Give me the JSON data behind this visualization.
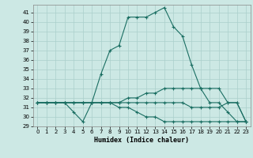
{
  "title": "",
  "xlabel": "Humidex (Indice chaleur)",
  "background_color": "#cce8e4",
  "grid_color": "#aacfcb",
  "line_color": "#1a6e62",
  "xlim": [
    -0.5,
    23.5
  ],
  "ylim": [
    29,
    41.8
  ],
  "yticks": [
    29,
    30,
    31,
    32,
    33,
    34,
    35,
    36,
    37,
    38,
    39,
    40,
    41
  ],
  "xticks": [
    0,
    1,
    2,
    3,
    4,
    5,
    6,
    7,
    8,
    9,
    10,
    11,
    12,
    13,
    14,
    15,
    16,
    17,
    18,
    19,
    20,
    21,
    22,
    23
  ],
  "series": [
    {
      "x": [
        0,
        1,
        2,
        3,
        4,
        5,
        6,
        7,
        8,
        9,
        10,
        11,
        12,
        13,
        14,
        15,
        16,
        17,
        18,
        19,
        20,
        21,
        22,
        23
      ],
      "y": [
        31.5,
        31.5,
        31.5,
        31.5,
        30.5,
        29.5,
        31.5,
        34.5,
        37.0,
        37.5,
        40.5,
        40.5,
        40.5,
        41.0,
        41.5,
        39.5,
        38.5,
        35.5,
        33.0,
        31.5,
        31.5,
        30.5,
        29.5,
        29.5
      ]
    },
    {
      "x": [
        0,
        1,
        2,
        3,
        4,
        5,
        6,
        7,
        8,
        9,
        10,
        11,
        12,
        13,
        14,
        15,
        16,
        17,
        18,
        19,
        20,
        21,
        22,
        23
      ],
      "y": [
        31.5,
        31.5,
        31.5,
        31.5,
        31.5,
        31.5,
        31.5,
        31.5,
        31.5,
        31.5,
        32.0,
        32.0,
        32.5,
        32.5,
        33.0,
        33.0,
        33.0,
        33.0,
        33.0,
        33.0,
        33.0,
        31.5,
        31.5,
        29.5
      ]
    },
    {
      "x": [
        0,
        1,
        2,
        3,
        4,
        5,
        6,
        7,
        8,
        9,
        10,
        11,
        12,
        13,
        14,
        15,
        16,
        17,
        18,
        19,
        20,
        21,
        22,
        23
      ],
      "y": [
        31.5,
        31.5,
        31.5,
        31.5,
        31.5,
        31.5,
        31.5,
        31.5,
        31.5,
        31.5,
        31.5,
        31.5,
        31.5,
        31.5,
        31.5,
        31.5,
        31.5,
        31.0,
        31.0,
        31.0,
        31.0,
        31.5,
        31.5,
        29.5
      ]
    },
    {
      "x": [
        0,
        1,
        2,
        3,
        4,
        5,
        6,
        7,
        8,
        9,
        10,
        11,
        12,
        13,
        14,
        15,
        16,
        17,
        18,
        19,
        20,
        21,
        22,
        23
      ],
      "y": [
        31.5,
        31.5,
        31.5,
        31.5,
        31.5,
        31.5,
        31.5,
        31.5,
        31.5,
        31.0,
        31.0,
        30.5,
        30.0,
        30.0,
        29.5,
        29.5,
        29.5,
        29.5,
        29.5,
        29.5,
        29.5,
        29.5,
        29.5,
        29.5
      ]
    }
  ]
}
